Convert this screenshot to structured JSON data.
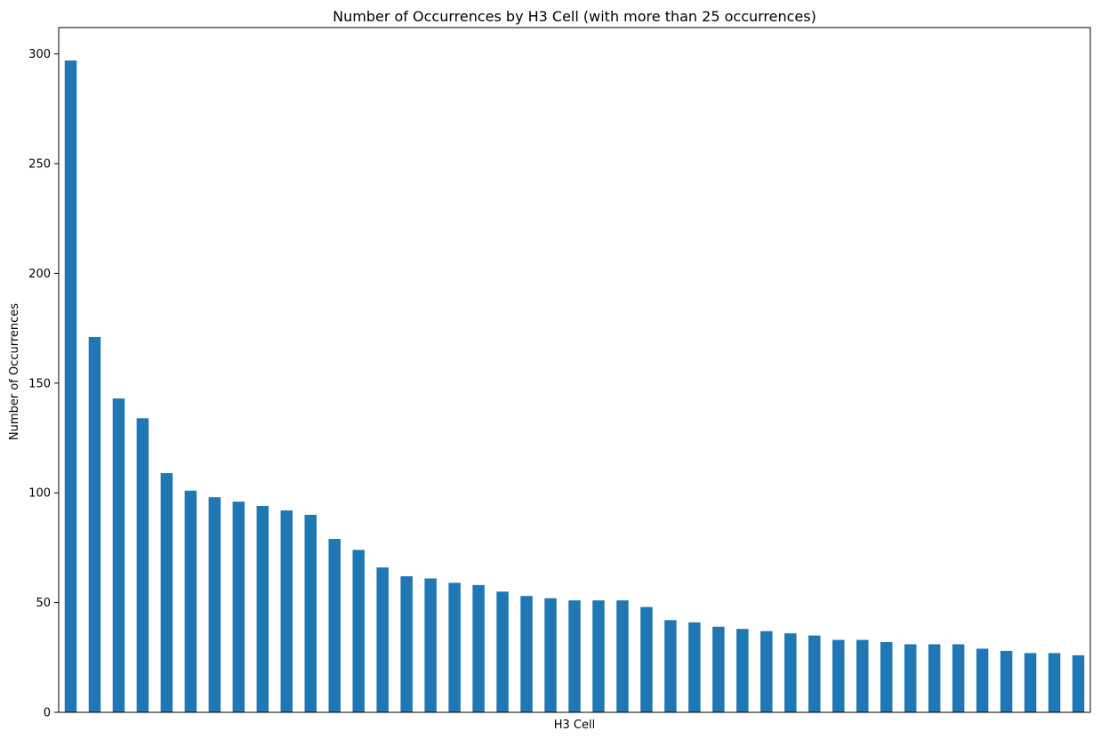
{
  "chart_data": {
    "type": "bar",
    "title": "Number of Occurrences by H3 Cell (with more than 25 occurrences)",
    "xlabel": "H3 Cell",
    "ylabel": "Number of Occurrences",
    "ylim": [
      0,
      312
    ],
    "yticks": [
      0,
      50,
      100,
      150,
      200,
      250,
      300
    ],
    "grid": false,
    "x_tick_labels_visible": false,
    "bar_color": "#1f77b4",
    "values": [
      297,
      171,
      143,
      134,
      109,
      101,
      98,
      96,
      94,
      92,
      90,
      79,
      74,
      66,
      62,
      61,
      59,
      58,
      55,
      53,
      52,
      51,
      51,
      51,
      48,
      42,
      41,
      39,
      38,
      37,
      36,
      35,
      33,
      33,
      32,
      31,
      31,
      31,
      29,
      28,
      27,
      27,
      26
    ]
  }
}
